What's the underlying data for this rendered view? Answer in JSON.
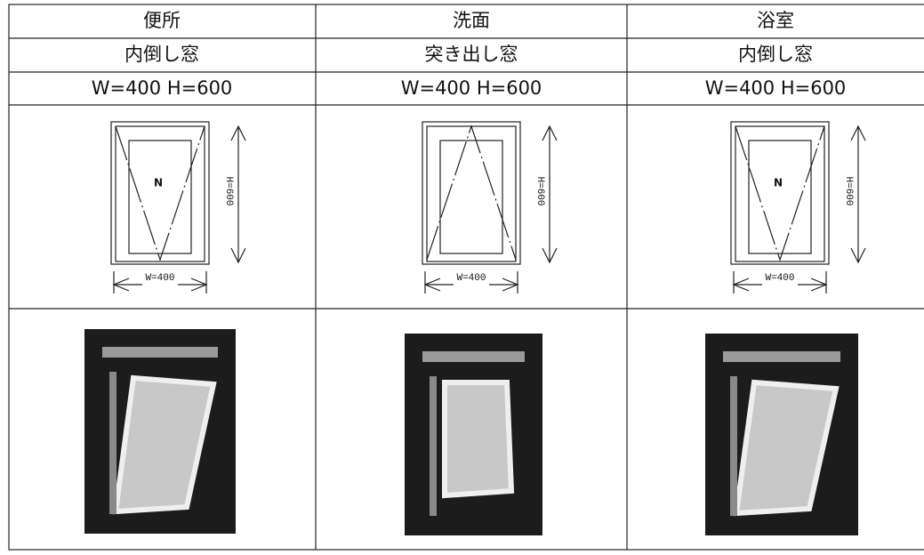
{
  "table": {
    "rows": [
      [
        "便所",
        "洗面",
        "浴室"
      ],
      [
        "内倒し窓",
        "突き出し窓",
        "内倒し窓"
      ],
      [
        "W=400 H=600",
        "W=400 H=600",
        "W=400 H=600"
      ]
    ],
    "diagrams": [
      {
        "label": "N",
        "height": "H=600",
        "width": "W=400"
      },
      {
        "height": "H=600",
        "width": "W=400"
      },
      {
        "label": "N",
        "height": "H=600",
        "width": "W=400"
      }
    ]
  }
}
